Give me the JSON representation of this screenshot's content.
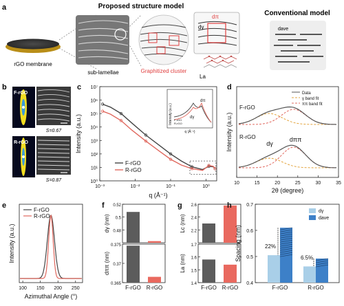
{
  "panel_a": {
    "letter": "a",
    "title_proposed": "Proposed structure model",
    "title_conventional": "Conventional model",
    "membrane_label": "rGO membrane",
    "sublamellae_label": "sub-lamellae",
    "cluster_label": "Graphitized cluster",
    "d_pi": "dπ",
    "d_gamma": "dγ",
    "La": "La",
    "d_ave": "dave"
  },
  "chart_data": [
    {
      "panel": "b",
      "type": "other",
      "labels": [
        "F-rGO",
        "R-rGO"
      ],
      "order_parameters": [
        "S=0.67",
        "S=0.87"
      ]
    },
    {
      "panel": "c",
      "type": "line",
      "title": "",
      "xlabel": "q (Å⁻¹)",
      "ylabel": "Intensity (a.u.)",
      "xscale": "log",
      "yscale": "log",
      "xlim": [
        0.001,
        2
      ],
      "ylim": [
        1,
        10000000
      ],
      "xticks": [
        "10⁻³",
        "10⁻²",
        "10⁻¹",
        "10⁰"
      ],
      "yticks": [
        "10⁰",
        "10¹",
        "10²",
        "10³",
        "10⁴",
        "10⁵",
        "10⁶",
        "10⁷"
      ],
      "series": [
        {
          "name": "F-rGO",
          "color": "#444444",
          "x": [
            0.0012,
            0.002,
            0.004,
            0.008,
            0.02,
            0.05,
            0.1,
            0.2,
            0.4,
            0.8,
            1.2,
            1.6,
            1.8
          ],
          "y": [
            500000,
            300000,
            100000,
            20000,
            2500,
            400,
            100,
            30,
            11,
            7,
            12,
            11,
            8
          ]
        },
        {
          "name": "R-rGO",
          "color": "#e0685e",
          "x": [
            0.0012,
            0.002,
            0.004,
            0.008,
            0.02,
            0.05,
            0.1,
            0.2,
            0.4,
            0.8,
            1.2,
            1.6,
            1.8
          ],
          "y": [
            150000,
            90000,
            30000,
            6000,
            900,
            150,
            40,
            15,
            8,
            6,
            14,
            12,
            8
          ]
        }
      ],
      "legend": "bottom-left",
      "inset": {
        "xlabel": "q (Å⁻¹)",
        "ylabel": "Intensity (a.u.)",
        "peaks": [
          "dγ",
          "dπ"
        ],
        "legend": [
          "F-rGO",
          "R-rGO"
        ]
      }
    },
    {
      "panel": "d",
      "type": "line",
      "title": "",
      "xlabel": "2θ (degree)",
      "ylabel": "Intensity (a.u.)",
      "xlim": [
        10,
        35
      ],
      "xticks": [
        10,
        15,
        20,
        25,
        30,
        35
      ],
      "series": [
        {
          "name": "Data",
          "color": "#555555"
        },
        {
          "name": "γ band fit",
          "color": "#e3a33c"
        },
        {
          "name": "ππ band fit",
          "color": "#e0685e"
        }
      ],
      "samples": [
        "F-rGO",
        "R-rGO"
      ],
      "peaks": {
        "gamma_2theta": 18,
        "pi_2theta": 24
      },
      "peak_labels": [
        "dγ",
        "dππ"
      ],
      "legend": "top-right"
    },
    {
      "panel": "e",
      "type": "line",
      "title": "",
      "xlabel": "Azimuthal Angle (°)",
      "ylabel": "Intensity (a.u.)",
      "xlim": [
        90,
        270
      ],
      "xticks": [
        100,
        150,
        200,
        250
      ],
      "series": [
        {
          "name": "F-rGO",
          "color": "#444444",
          "center": 180,
          "fwhm": 24
        },
        {
          "name": "R-rGO",
          "color": "#e0685e",
          "center": 180,
          "fwhm": 15
        }
      ],
      "legend": "top-left"
    },
    {
      "panel": "f",
      "type": "bar",
      "categories": [
        "F-rGO",
        "R-rGO"
      ],
      "subplots": [
        {
          "ylabel": "dγ (nm)",
          "ylim": [
            0.46,
            0.52
          ],
          "yticks": [
            0.48,
            0.5,
            0.52
          ],
          "values": [
            0.508,
            0.4625
          ],
          "colors": [
            "#5c5c5c",
            "#e9695f"
          ]
        },
        {
          "ylabel": "dππ (nm)",
          "ylim": [
            0.365,
            0.375
          ],
          "yticks": [
            0.365,
            0.37,
            0.375
          ],
          "values": [
            0.3746,
            0.3665
          ],
          "colors": [
            "#5c5c5c",
            "#e9695f"
          ]
        }
      ]
    },
    {
      "panel": "g",
      "type": "bar",
      "categories": [
        "F-rGO",
        "R-rGO"
      ],
      "subplots": [
        {
          "ylabel": "Lc (nm)",
          "ylim": [
            2,
            2.6
          ],
          "yticks": [
            2.2,
            2.4,
            2.6
          ],
          "values": [
            2.3,
            2.58
          ],
          "colors": [
            "#5c5c5c",
            "#e9695f"
          ]
        },
        {
          "ylabel": "La (nm)",
          "ylim": [
            1.4,
            1.7
          ],
          "yticks": [
            1.4,
            1.5,
            1.6,
            1.7
          ],
          "values": [
            1.58,
            1.54
          ],
          "colors": [
            "#5c5c5c",
            "#e9695f"
          ]
        }
      ]
    },
    {
      "panel": "h",
      "type": "bar",
      "ylabel": "Spacing (nm)",
      "categories": [
        "F-rGO",
        "R-rGO"
      ],
      "ylim": [
        0.4,
        0.7
      ],
      "yticks": [
        0.4,
        0.5,
        0.6,
        0.7
      ],
      "series": [
        {
          "name": "dγ",
          "color": "#a9cfe8",
          "values": [
            0.505,
            0.462
          ]
        },
        {
          "name": "dave",
          "color": "#3d80c8",
          "values": [
            0.61,
            0.492
          ]
        }
      ],
      "annotations": [
        "22%",
        "6.5%"
      ],
      "legend": "top-right"
    }
  ]
}
